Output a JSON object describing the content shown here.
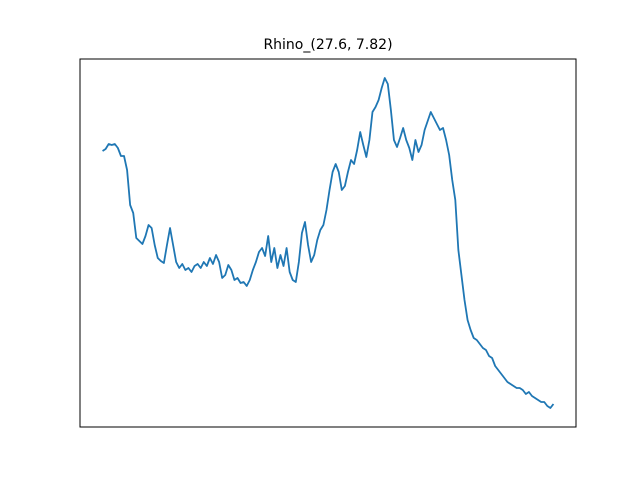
{
  "chart_data": {
    "type": "line",
    "title": "Rhino_(27.6, 7.82)",
    "color": "#1f77b4",
    "ylim": [
      0,
      368
    ],
    "values": [
      276,
      278,
      283,
      282,
      283,
      279,
      271,
      271,
      257,
      222,
      214,
      189,
      186,
      183,
      191,
      202,
      199,
      182,
      169,
      166,
      164,
      182,
      199,
      182,
      165,
      159,
      163,
      157,
      159,
      155,
      161,
      163,
      159,
      165,
      161,
      169,
      163,
      172,
      165,
      149,
      152,
      162,
      157,
      147,
      149,
      144,
      145,
      141,
      147,
      157,
      165,
      175,
      179,
      171,
      191,
      165,
      179,
      159,
      172,
      161,
      179,
      155,
      147,
      145,
      165,
      194,
      205,
      182,
      165,
      172,
      187,
      197,
      202,
      217,
      237,
      255,
      263,
      255,
      237,
      241,
      255,
      267,
      263,
      277,
      295,
      282,
      270,
      287,
      315,
      320,
      327,
      339,
      349,
      343,
      317,
      287,
      280,
      289,
      299,
      287,
      279,
      267,
      287,
      275,
      282,
      297,
      306,
      315,
      309,
      303,
      297,
      299,
      287,
      272,
      247,
      227,
      177,
      152,
      127,
      107,
      97,
      89,
      87,
      83,
      79,
      77,
      71,
      69,
      61,
      57,
      53,
      49,
      45,
      43,
      41,
      39,
      39,
      37,
      33,
      35,
      31,
      29,
      27,
      25,
      25,
      21,
      19,
      23
    ]
  }
}
